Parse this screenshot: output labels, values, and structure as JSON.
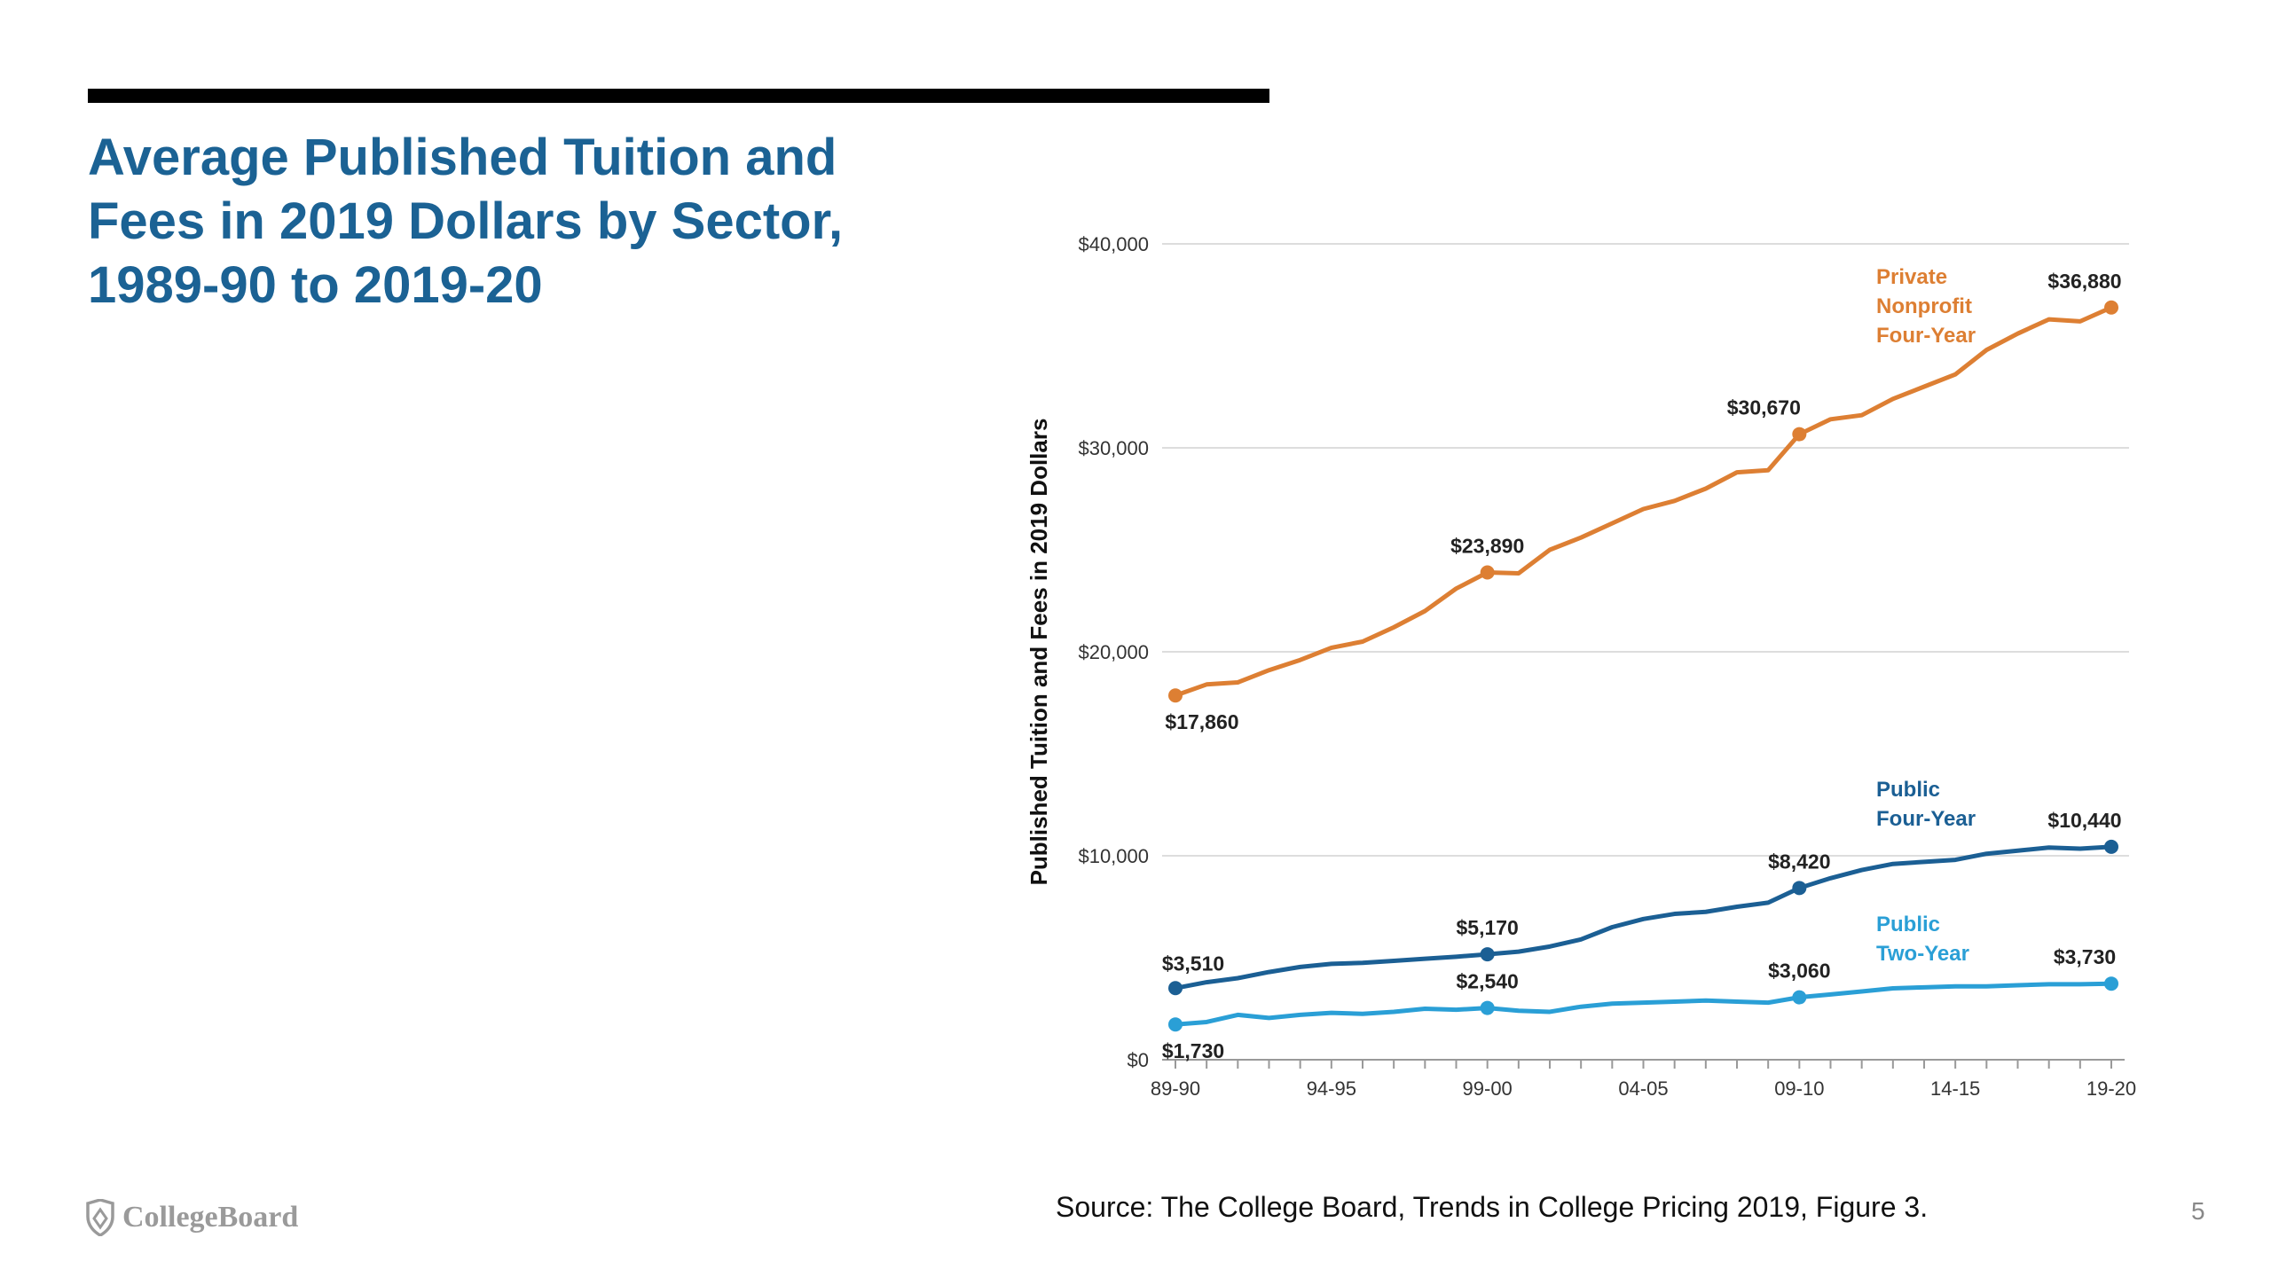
{
  "title": {
    "line1": "Average Published Tuition and",
    "line2": "Fees in 2019 Dollars by Sector,",
    "line3": "1989-90 to 2019-20"
  },
  "source": "Source: The College Board, Trends in College Pricing 2019, Figure 3.",
  "page_number": "5",
  "logo_text": "CollegeBoard",
  "colors": {
    "title": "#1b6294",
    "private": "#dd7f33",
    "public4": "#1b5f94",
    "public2": "#2a9fd6"
  },
  "chart_data": {
    "type": "line",
    "ylabel": "Published Tuition and Fees in 2019 Dollars",
    "ylim": [
      0,
      40000
    ],
    "yticks": [
      0,
      10000,
      20000,
      30000,
      40000
    ],
    "ytick_labels": [
      "$0",
      "$10,000",
      "$20,000",
      "$30,000",
      "$40,000"
    ],
    "x": [
      "89-90",
      "90-91",
      "91-92",
      "92-93",
      "93-94",
      "94-95",
      "95-96",
      "96-97",
      "97-98",
      "98-99",
      "99-00",
      "00-01",
      "01-02",
      "02-03",
      "03-04",
      "04-05",
      "05-06",
      "06-07",
      "07-08",
      "08-09",
      "09-10",
      "10-11",
      "11-12",
      "12-13",
      "13-14",
      "14-15",
      "15-16",
      "16-17",
      "17-18",
      "18-19",
      "19-20"
    ],
    "xtick_labels": [
      "89-90",
      "94-95",
      "99-00",
      "04-05",
      "09-10",
      "14-15",
      "19-20"
    ],
    "grid": true,
    "series": [
      {
        "name": "Private Nonprofit Four-Year",
        "label_lines": [
          "Private",
          "Nonprofit",
          "Four-Year"
        ],
        "values": [
          17860,
          18400,
          18500,
          19100,
          19600,
          20200,
          20500,
          21200,
          22000,
          23100,
          23890,
          23850,
          25000,
          25600,
          26300,
          27000,
          27400,
          28000,
          28800,
          28900,
          30670,
          31400,
          31600,
          32400,
          33000,
          33600,
          34800,
          35600,
          36300,
          36200,
          36880
        ],
        "annotations": [
          {
            "index": 0,
            "label": "$17,860"
          },
          {
            "index": 10,
            "label": "$23,890"
          },
          {
            "index": 20,
            "label": "$30,670"
          },
          {
            "index": 30,
            "label": "$36,880"
          }
        ]
      },
      {
        "name": "Public Four-Year",
        "label_lines": [
          "Public",
          "Four-Year"
        ],
        "values": [
          3510,
          3800,
          4000,
          4300,
          4550,
          4700,
          4750,
          4850,
          4950,
          5050,
          5170,
          5300,
          5550,
          5900,
          6500,
          6900,
          7150,
          7250,
          7500,
          7700,
          8420,
          8900,
          9300,
          9600,
          9700,
          9800,
          10100,
          10250,
          10400,
          10350,
          10440
        ],
        "annotations": [
          {
            "index": 0,
            "label": "$3,510"
          },
          {
            "index": 10,
            "label": "$5,170"
          },
          {
            "index": 20,
            "label": "$8,420"
          },
          {
            "index": 30,
            "label": "$10,440"
          }
        ]
      },
      {
        "name": "Public Two-Year",
        "label_lines": [
          "Public",
          "Two-Year"
        ],
        "values": [
          1730,
          1850,
          2200,
          2050,
          2200,
          2300,
          2250,
          2350,
          2500,
          2450,
          2540,
          2400,
          2350,
          2600,
          2750,
          2800,
          2850,
          2900,
          2850,
          2800,
          3060,
          3200,
          3350,
          3500,
          3550,
          3600,
          3600,
          3650,
          3700,
          3700,
          3730
        ],
        "annotations": [
          {
            "index": 0,
            "label": "$1,730"
          },
          {
            "index": 10,
            "label": "$2,540"
          },
          {
            "index": 20,
            "label": "$3,060"
          },
          {
            "index": 30,
            "label": "$3,730"
          }
        ]
      }
    ]
  }
}
